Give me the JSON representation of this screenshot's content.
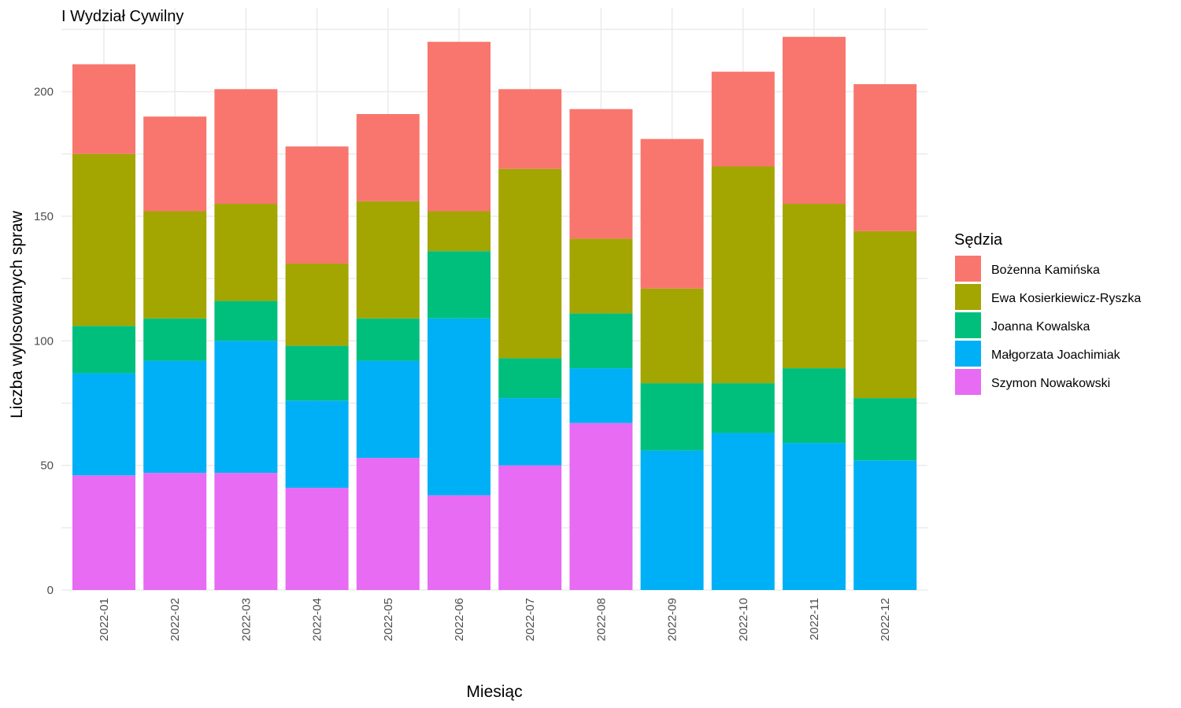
{
  "chart_data": {
    "type": "bar",
    "stacked": true,
    "title": "I Wydział Cywilny",
    "xlabel": "Miesiąc",
    "ylabel": "Liczba wylosowanych spraw",
    "ylim": [
      0,
      225
    ],
    "yticks": [
      0,
      50,
      100,
      150,
      200
    ],
    "grid": true,
    "legend_title": "Sędzia",
    "legend_position": "right",
    "categories": [
      "2022-01",
      "2022-02",
      "2022-03",
      "2022-04",
      "2022-05",
      "2022-06",
      "2022-07",
      "2022-08",
      "2022-09",
      "2022-10",
      "2022-11",
      "2022-12"
    ],
    "series": [
      {
        "name": "Szymon Nowakowski",
        "color": "#E76BF3",
        "values": [
          46,
          47,
          47,
          41,
          53,
          38,
          50,
          67,
          0,
          0,
          0,
          0
        ]
      },
      {
        "name": "Małgorzata Joachimiak",
        "color": "#00B0F6",
        "values": [
          41,
          45,
          53,
          35,
          39,
          71,
          27,
          22,
          56,
          63,
          59,
          52
        ]
      },
      {
        "name": "Joanna Kowalska",
        "color": "#00BF7D",
        "values": [
          19,
          17,
          16,
          22,
          17,
          27,
          16,
          22,
          27,
          20,
          30,
          25
        ]
      },
      {
        "name": "Ewa Kosierkiewicz-Ryszka",
        "color": "#A3A500",
        "values": [
          69,
          43,
          39,
          33,
          47,
          16,
          76,
          30,
          38,
          87,
          66,
          67
        ]
      },
      {
        "name": "Bożenna Kamińska",
        "color": "#F8766D",
        "values": [
          36,
          38,
          46,
          47,
          35,
          68,
          32,
          52,
          60,
          38,
          67,
          59
        ]
      }
    ],
    "legend_order": [
      "Bożenna Kamińska",
      "Ewa Kosierkiewicz-Ryszka",
      "Joanna Kowalska",
      "Małgorzata Joachimiak",
      "Szymon Nowakowski"
    ]
  }
}
